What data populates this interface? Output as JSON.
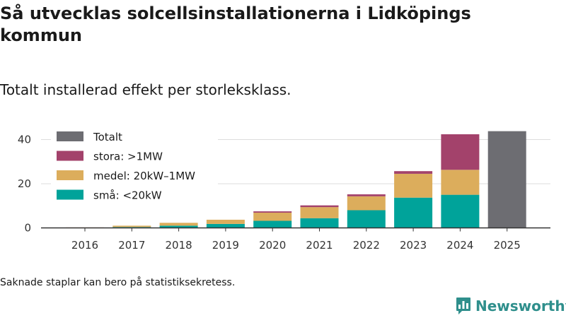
{
  "page": {
    "title": "Så utvecklas solcellsinstallationerna i Lidköpings kommun",
    "subtitle": "Totalt installerad effekt per storleksklass.",
    "footnote": "Saknade staplar kan bero på statistiksekretess.",
    "logo_text": "Newsworthy",
    "logo_icon": "newsworthy-chart-icon"
  },
  "chart_data": {
    "type": "bar",
    "stacked": true,
    "title": "Så utvecklas solcellsinstallationerna i Lidköpings kommun",
    "subtitle": "Totalt installerad effekt per storleksklass.",
    "xlabel": "",
    "ylabel": "",
    "ylim": [
      0,
      46
    ],
    "yticks": [
      0,
      20,
      40
    ],
    "grid": true,
    "legend_position": "top-left",
    "categories": [
      "2016",
      "2017",
      "2018",
      "2019",
      "2020",
      "2021",
      "2022",
      "2023",
      "2024",
      "2025"
    ],
    "series": [
      {
        "name": "små: <20kW",
        "color": "#00a39a",
        "values": [
          0.1,
          0.4,
          1.0,
          1.8,
          3.2,
          4.4,
          8.0,
          13.7,
          15.0,
          null
        ]
      },
      {
        "name": "medel: 20kW–1MW",
        "color": "#dcad5c",
        "values": [
          0.1,
          0.6,
          1.3,
          1.9,
          3.7,
          5.0,
          6.3,
          10.8,
          11.3,
          null
        ]
      },
      {
        "name": "stora: >1MW",
        "color": "#a3426b",
        "values": [
          0,
          0,
          0,
          0,
          0.6,
          0.8,
          0.9,
          1.2,
          16.1,
          null
        ]
      },
      {
        "name": "Totalt",
        "color": "#6d6d72",
        "values": [
          null,
          null,
          null,
          null,
          null,
          null,
          null,
          null,
          null,
          43.8
        ]
      }
    ],
    "legend": [
      "Totalt",
      "stora: >1MW",
      "medel: 20kW–1MW",
      "små: <20kW"
    ]
  }
}
